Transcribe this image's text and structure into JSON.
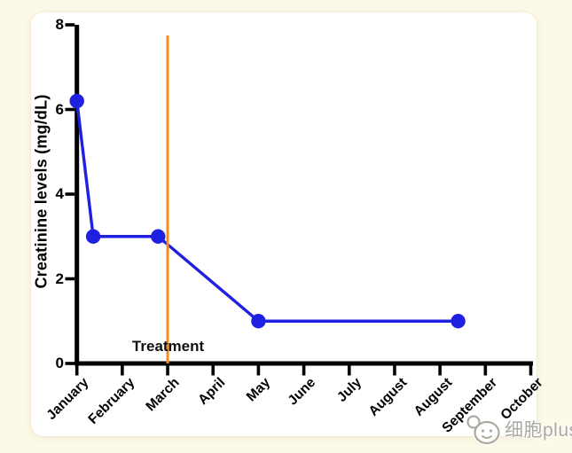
{
  "page": {
    "background_color": "#fdf9e8",
    "panel_color": "#ffffff"
  },
  "chart_data": {
    "type": "line",
    "title": "",
    "xlabel": "",
    "ylabel": "Creatinine levels (mg/dL)",
    "ylim": [
      0,
      8
    ],
    "yticks": [
      8,
      6,
      4,
      2,
      0
    ],
    "x_categories": [
      "January",
      "February",
      "March",
      "April",
      "May",
      "June",
      "July",
      "August",
      "August",
      "September",
      "October"
    ],
    "grid": "off",
    "legend": "none",
    "axis_color": "#000000",
    "series": [
      {
        "name": "Creatinine levels",
        "color": "#2020e0",
        "marker": "circle",
        "points": [
          {
            "x_month": 0.0,
            "y": 6.2
          },
          {
            "x_month": 0.36,
            "y": 3.0
          },
          {
            "x_month": 1.79,
            "y": 3.0
          },
          {
            "x_month": 4.0,
            "y": 1.0
          },
          {
            "x_month": 8.4,
            "y": 1.0
          }
        ]
      }
    ],
    "annotations": {
      "treatment_line": {
        "label": "Treatment",
        "x_month": 2.0,
        "color": "#ef8d20",
        "orientation": "vertical"
      }
    }
  },
  "watermark": {
    "icon": "cell-cartoon-icon",
    "text": "细胞plus",
    "color": "#a7a39b"
  }
}
